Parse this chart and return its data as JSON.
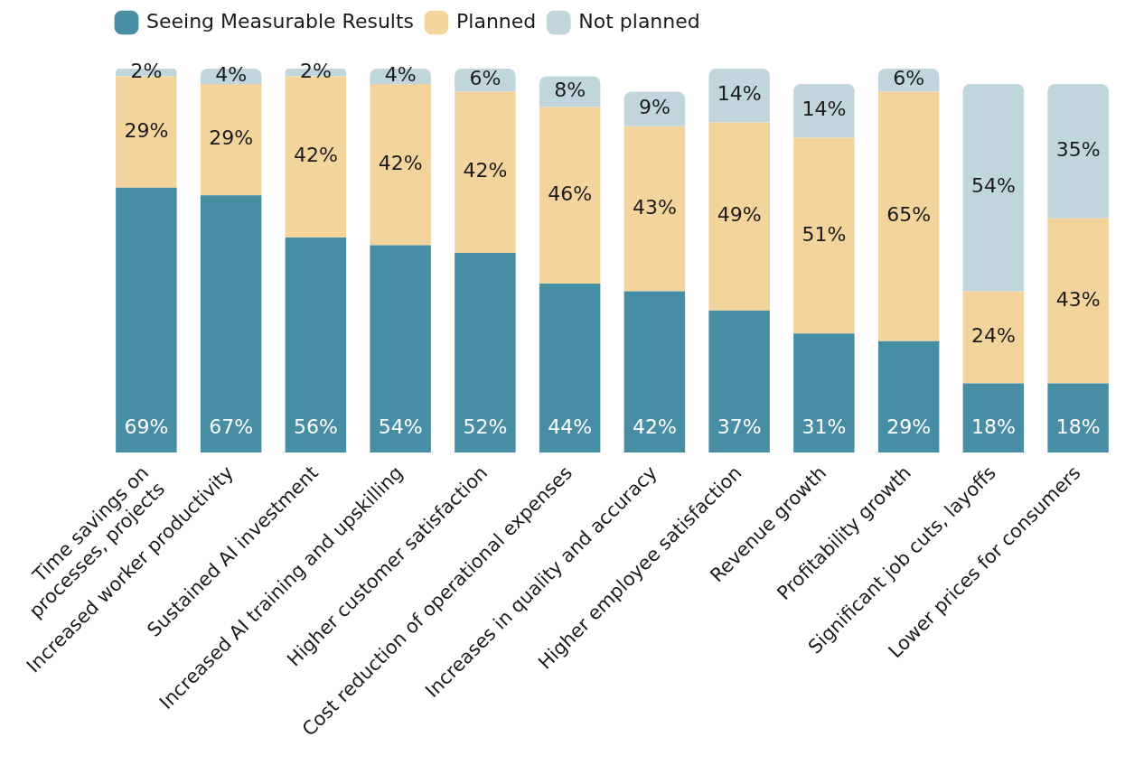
{
  "chart_data": {
    "type": "bar",
    "stacked": true,
    "legend": "top left",
    "grid": false,
    "categories": [
      "Time savings on processes, projects",
      "Increased worker productivity",
      "Sustained AI investment",
      "Increased AI training and upskilling",
      "Higher customer satisfaction",
      "Cost reduction of operational expenses",
      "Increases in quality and accuracy",
      "Higher employee satisfaction",
      "Revenue growth",
      "Profitability growth",
      "Significant job cuts, layoffs",
      "Lower prices for consumers"
    ],
    "series": [
      {
        "name": "Seeing Measurable Results",
        "color": "#478ea5",
        "values": [
          69,
          67,
          56,
          54,
          52,
          44,
          42,
          37,
          31,
          29,
          18,
          18
        ],
        "value_labels": [
          "69%",
          "67%",
          "56%",
          "54%",
          "52%",
          "44%",
          "42%",
          "37%",
          "31%",
          "29%",
          "18%",
          "18%"
        ]
      },
      {
        "name": "Planned",
        "color": "#f3d49c",
        "values": [
          29,
          29,
          42,
          42,
          42,
          46,
          43,
          49,
          51,
          65,
          24,
          43
        ],
        "value_labels": [
          "29%",
          "29%",
          "42%",
          "42%",
          "42%",
          "46%",
          "43%",
          "49%",
          "51%",
          "65%",
          "24%",
          "43%"
        ]
      },
      {
        "name": "Not planned",
        "color": "#c1d5dc",
        "values": [
          2,
          4,
          2,
          4,
          6,
          8,
          9,
          14,
          14,
          6,
          54,
          35
        ],
        "value_labels": [
          "2%",
          "4%",
          "2%",
          "4%",
          "6%",
          "8%",
          "9%",
          "14%",
          "14%",
          "6%",
          "54%",
          "35%"
        ]
      }
    ]
  }
}
